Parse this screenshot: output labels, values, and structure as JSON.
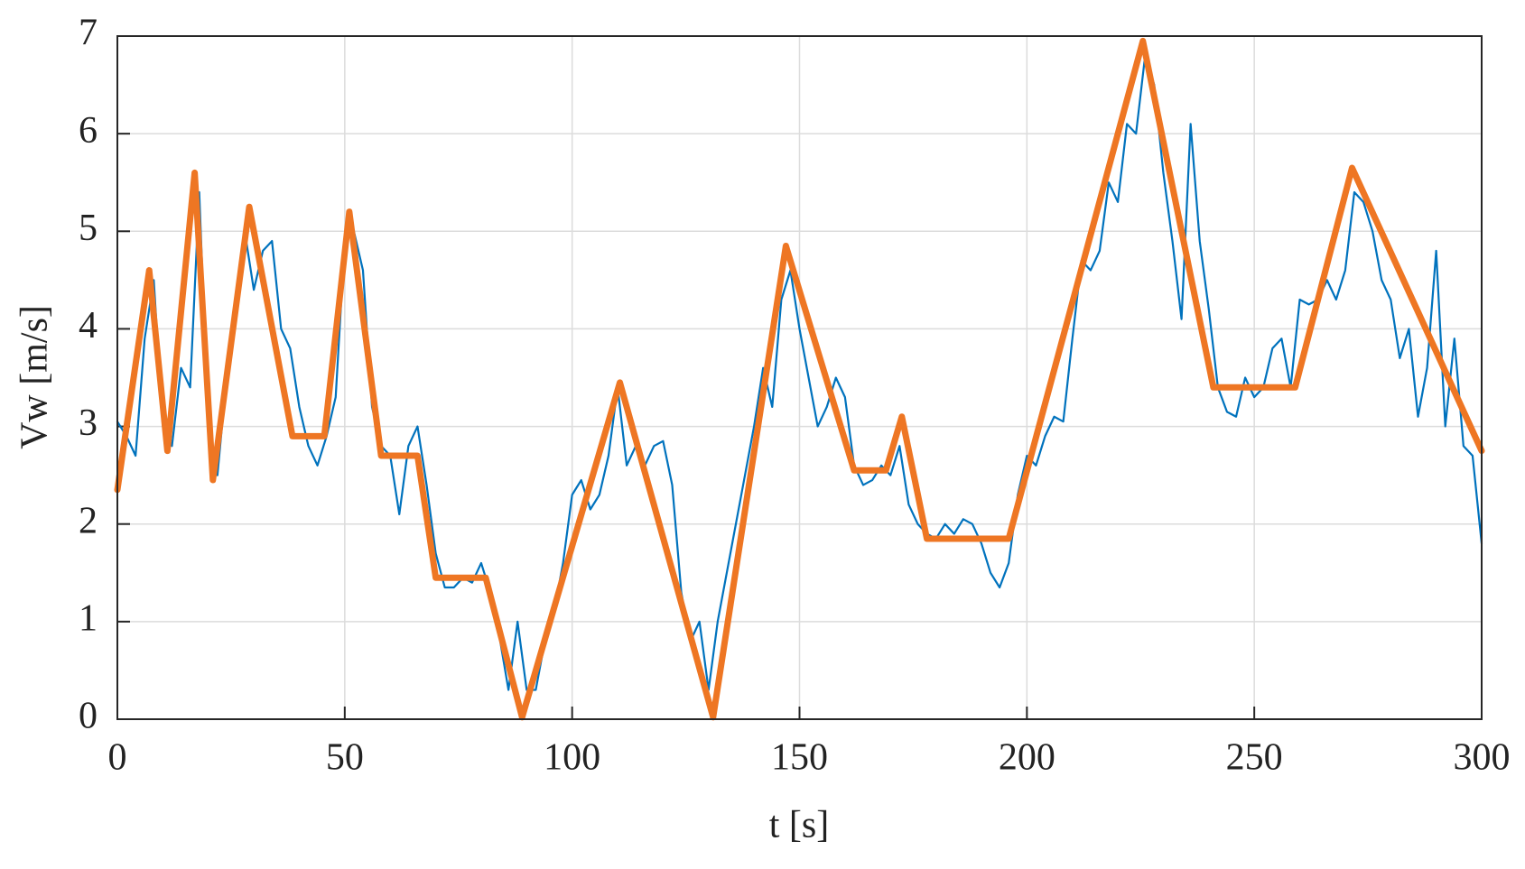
{
  "chart_data": {
    "type": "line",
    "x_label": "t [s]",
    "y_label": "Vw [m/s]",
    "xlim": [
      0,
      300
    ],
    "ylim": [
      0,
      7
    ],
    "xticks": [
      0,
      50,
      100,
      150,
      200,
      250,
      300
    ],
    "yticks": [
      0,
      1,
      2,
      3,
      4,
      5,
      6,
      7
    ],
    "grid": true,
    "series": [
      {
        "color": "#0072bd",
        "x": [
          0,
          2,
          4,
          6,
          8,
          10,
          12,
          14,
          16,
          18,
          20,
          22,
          24,
          26,
          28,
          30,
          32,
          34,
          36,
          38,
          40,
          42,
          44,
          46,
          48,
          50,
          52,
          54,
          56,
          58,
          60,
          62,
          64,
          66,
          68,
          70,
          72,
          74,
          76,
          78,
          80,
          82,
          84,
          86,
          88,
          90,
          92,
          94,
          96,
          98,
          100,
          102,
          104,
          106,
          108,
          110,
          112,
          114,
          116,
          118,
          120,
          122,
          124,
          126,
          128,
          130,
          132,
          134,
          136,
          138,
          140,
          142,
          144,
          146,
          148,
          150,
          152,
          154,
          156,
          158,
          160,
          162,
          164,
          166,
          168,
          170,
          172,
          174,
          176,
          178,
          180,
          182,
          184,
          186,
          188,
          190,
          192,
          194,
          196,
          198,
          200,
          202,
          204,
          206,
          208,
          210,
          212,
          214,
          216,
          218,
          220,
          222,
          224,
          226,
          228,
          230,
          232,
          234,
          236,
          238,
          240,
          242,
          244,
          246,
          248,
          250,
          252,
          254,
          256,
          258,
          260,
          262,
          264,
          266,
          268,
          270,
          272,
          274,
          276,
          278,
          280,
          282,
          284,
          286,
          288,
          290,
          292,
          294,
          296,
          298,
          300
        ],
        "values": [
          3.05,
          2.9,
          2.7,
          3.9,
          4.5,
          3.0,
          2.8,
          3.6,
          3.4,
          5.4,
          3.0,
          2.5,
          3.5,
          4.2,
          5.0,
          4.4,
          4.8,
          4.9,
          4.0,
          3.8,
          3.2,
          2.8,
          2.6,
          2.9,
          3.3,
          4.9,
          5.0,
          4.6,
          3.2,
          2.8,
          2.7,
          2.1,
          2.8,
          3.0,
          2.4,
          1.7,
          1.35,
          1.35,
          1.45,
          1.4,
          1.6,
          1.3,
          0.85,
          0.3,
          1.0,
          0.3,
          0.3,
          0.8,
          1.1,
          1.6,
          2.3,
          2.45,
          2.15,
          2.3,
          2.7,
          3.4,
          2.6,
          2.8,
          2.6,
          2.8,
          2.85,
          2.4,
          1.3,
          0.8,
          1.0,
          0.3,
          1.0,
          1.5,
          2.0,
          2.5,
          3.0,
          3.6,
          3.2,
          4.3,
          4.6,
          4.0,
          3.5,
          3.0,
          3.2,
          3.5,
          3.3,
          2.6,
          2.4,
          2.45,
          2.6,
          2.5,
          2.8,
          2.2,
          2.0,
          1.9,
          1.85,
          2.0,
          1.9,
          2.05,
          2.0,
          1.8,
          1.5,
          1.35,
          1.6,
          2.3,
          2.7,
          2.6,
          2.9,
          3.1,
          3.05,
          3.9,
          4.7,
          4.6,
          4.8,
          5.5,
          5.3,
          6.1,
          6.0,
          6.8,
          6.5,
          5.6,
          4.9,
          4.1,
          6.1,
          4.9,
          4.2,
          3.4,
          3.15,
          3.1,
          3.5,
          3.3,
          3.4,
          3.8,
          3.9,
          3.4,
          4.3,
          4.25,
          4.3,
          4.5,
          4.3,
          4.6,
          5.4,
          5.3,
          5.0,
          4.5,
          4.3,
          3.7,
          4.0,
          3.1,
          3.6,
          4.8,
          3.0,
          3.9,
          2.8,
          2.7,
          1.8
        ]
      },
      {
        "color": "#ee7623",
        "x": [
          0,
          7,
          11,
          17,
          21,
          29,
          38.5,
          45.5,
          51,
          58,
          66,
          70,
          81,
          89,
          110.5,
          131,
          147,
          162,
          169,
          172.5,
          178,
          196,
          225.5,
          241,
          259,
          271.5,
          300
        ],
        "values": [
          2.35,
          4.6,
          2.75,
          5.6,
          2.45,
          5.25,
          2.9,
          2.9,
          5.2,
          2.7,
          2.7,
          1.45,
          1.45,
          0.02,
          3.45,
          0.02,
          4.85,
          2.55,
          2.55,
          3.1,
          1.85,
          1.85,
          6.95,
          3.4,
          3.4,
          5.65,
          2.75
        ]
      }
    ]
  }
}
